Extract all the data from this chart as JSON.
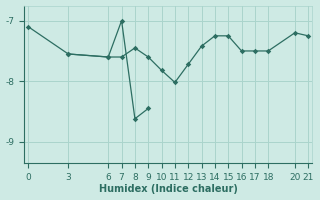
{
  "xlabel": "Humidex (Indice chaleur)",
  "background_color": "#ceeae4",
  "grid_color": "#aad4cc",
  "line_color": "#2d6e62",
  "line1_x": [
    0,
    3,
    6,
    7,
    8,
    9,
    10,
    11,
    12,
    13,
    14,
    15,
    16,
    17,
    18,
    20,
    21
  ],
  "line1_y": [
    -7.1,
    -7.55,
    -7.6,
    -7.6,
    -7.45,
    -7.6,
    -7.82,
    -8.02,
    -7.72,
    -7.42,
    -7.25,
    -7.25,
    -7.5,
    -7.5,
    -7.5,
    -7.2,
    -7.25
  ],
  "line2_x": [
    3,
    6,
    7,
    8,
    9
  ],
  "line2_y": [
    -7.55,
    -7.6,
    -7.0,
    -8.62,
    -8.45
  ],
  "xlim": [
    -0.3,
    21.3
  ],
  "ylim": [
    -9.35,
    -6.75
  ],
  "yticks": [
    -9,
    -8,
    -7
  ],
  "xticks": [
    0,
    3,
    6,
    7,
    8,
    9,
    10,
    11,
    12,
    13,
    14,
    15,
    16,
    17,
    18,
    20,
    21
  ],
  "marker": "D",
  "markersize": 2.8,
  "linewidth": 0.9,
  "fontsize": 6.5,
  "xlabel_fontsize": 7.0
}
